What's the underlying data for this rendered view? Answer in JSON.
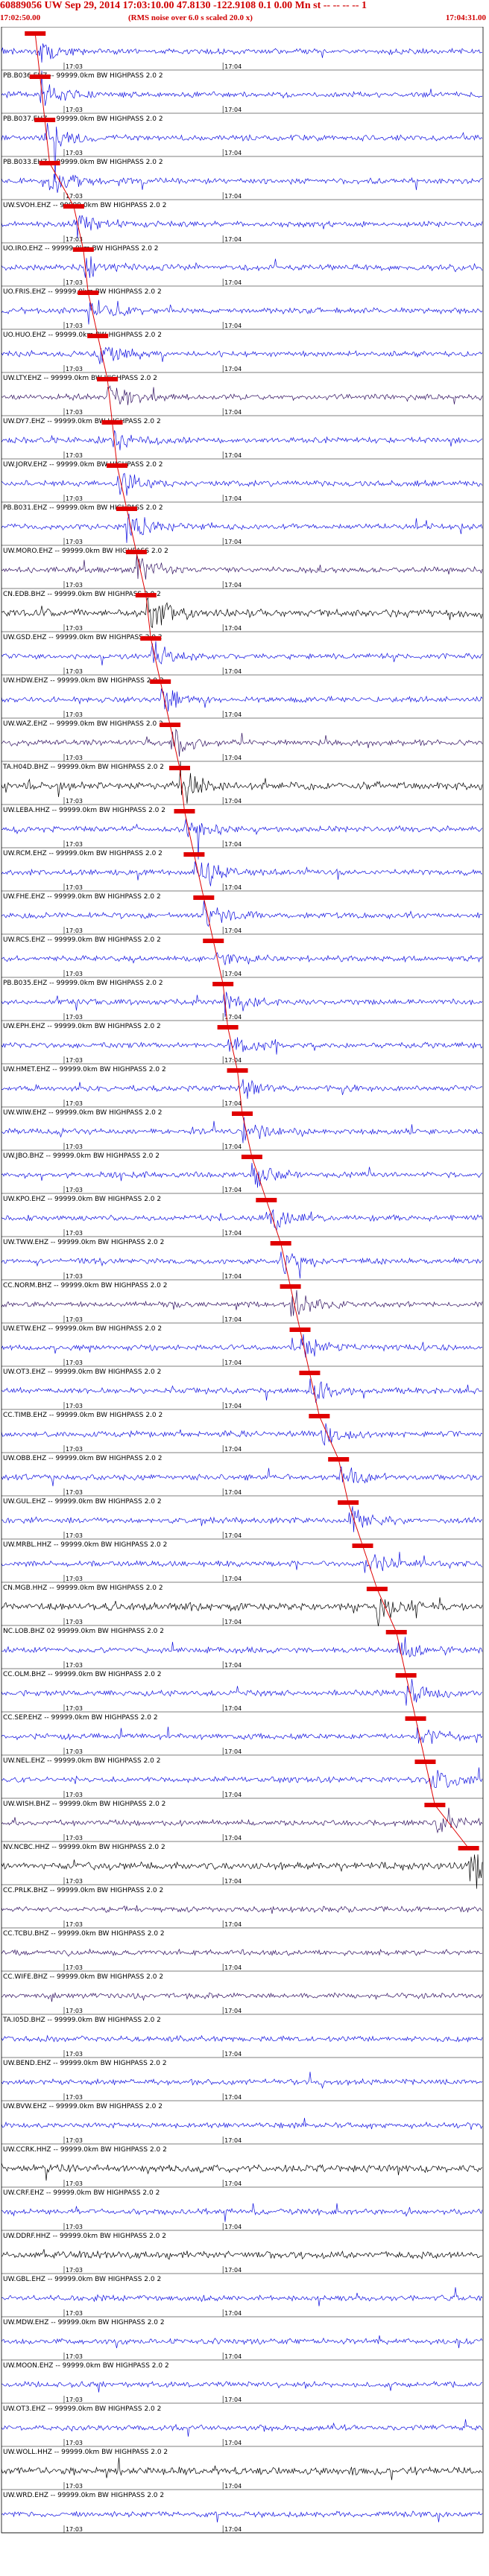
{
  "header": {
    "title": "60889056 UW Sep 29, 2014 17:03:10.00   47.8130 -122.9108  0.1 0.00 Mn st -- -- -- -- 1",
    "start_time": "17:02:50.00",
    "note": "(RMS noise over 6.0 s scaled 20.0 x)",
    "end_time": "17:04:31.00"
  },
  "time_labels": [
    "17:03",
    "17:04"
  ],
  "colors": {
    "trace_blue": "#1010e0",
    "trace_black": "#000000",
    "trace_purple": "#301060",
    "pick": "#e00000",
    "grid": "#000000"
  },
  "channels": [
    {
      "label": "",
      "color": "blue",
      "pick": 0.07
    },
    {
      "label": "PB.B036.EHZ -- 99999.0km BW HIGHPASS 2.0 2",
      "color": "blue",
      "pick": 0.08
    },
    {
      "label": "PB.B037.EHZ -- 99999.0km BW HIGHPASS 2.0 2",
      "color": "blue",
      "pick": 0.09
    },
    {
      "label": "PB.B033.EHZ -- 99999.0km BW HIGHPASS 2.0 2",
      "color": "blue",
      "pick": 0.1
    },
    {
      "label": "UW.SVOH.EHZ -- 99999.0km BW HIGHPASS 2.0 2",
      "color": "blue",
      "pick": 0.15
    },
    {
      "label": "UO.IRO.EHZ -- 99999.0km BW HIGHPASS 2.0 2",
      "color": "blue",
      "pick": 0.17
    },
    {
      "label": "UO.FRIS.EHZ -- 99999.0km BW HIGHPASS 2.0 2",
      "color": "blue",
      "pick": 0.18
    },
    {
      "label": "UO.HUO.EHZ -- 99999.0km BW HIGHPASS 2.0 2",
      "color": "blue",
      "pick": 0.2
    },
    {
      "label": "UW.LTY.EHZ -- 99999.0km BW HIGHPASS 2.0 2",
      "color": "purple",
      "pick": 0.22
    },
    {
      "label": "UW.DY7.EHZ -- 99999.0km BW HIGHPASS 2.0 2",
      "color": "blue",
      "pick": 0.23
    },
    {
      "label": "UW.JORV.EHZ -- 99999.0km BW HIGHPASS 2.0 2",
      "color": "blue",
      "pick": 0.24
    },
    {
      "label": "PB.B031.EHZ -- 99999.0km BW HIGHPASS 2.0 2",
      "color": "blue",
      "pick": 0.26
    },
    {
      "label": "UW.MORO.EHZ -- 99999.0km BW HIGHPASS 2.0 2",
      "color": "purple",
      "pick": 0.28
    },
    {
      "label": "CN.EDB.BHZ -- 99999.0km BW HIGHPASS 2.0 2",
      "color": "black",
      "pick": 0.3
    },
    {
      "label": "UW.GSD.EHZ -- 99999.0km BW HIGHPASS 2.0 2",
      "color": "blue",
      "pick": 0.31
    },
    {
      "label": "UW.HDW.EHZ -- 99999.0km BW HIGHPASS 2.0 2",
      "color": "blue",
      "pick": 0.33
    },
    {
      "label": "UW.WAZ.EHZ -- 99999.0km BW HIGHPASS 2.0 2",
      "color": "purple",
      "pick": 0.35
    },
    {
      "label": "TA.H04D.BHZ -- 99999.0km BW HIGHPASS 2.0 2",
      "color": "black",
      "pick": 0.37
    },
    {
      "label": "UW.LEBA.HHZ -- 99999.0km BW HIGHPASS 2.0 2",
      "color": "blue",
      "pick": 0.38
    },
    {
      "label": "UW.RCM.EHZ -- 99999.0km BW HIGHPASS 2.0 2",
      "color": "blue",
      "pick": 0.4
    },
    {
      "label": "UW.FHE.EHZ -- 99999.0km BW HIGHPASS 2.0 2",
      "color": "blue",
      "pick": 0.42
    },
    {
      "label": "UW.RCS.EHZ -- 99999.0km BW HIGHPASS 2.0 2",
      "color": "blue",
      "pick": 0.44
    },
    {
      "label": "PB.B035.EHZ -- 99999.0km BW HIGHPASS 2.0 2",
      "color": "blue",
      "pick": 0.46
    },
    {
      "label": "UW.EPH.EHZ -- 99999.0km BW HIGHPASS 2.0 2",
      "color": "blue",
      "pick": 0.47
    },
    {
      "label": "UW.HMET.EHZ -- 99999.0km BW HIGHPASS 2.0 2",
      "color": "blue",
      "pick": 0.49
    },
    {
      "label": "UW.WIW.EHZ -- 99999.0km BW HIGHPASS 2.0 2",
      "color": "blue",
      "pick": 0.5
    },
    {
      "label": "UW.JBO.BHZ -- 99999.0km BW HIGHPASS 2.0 2",
      "color": "blue",
      "pick": 0.52
    },
    {
      "label": "UW.KPO.EHZ -- 99999.0km BW HIGHPASS 2.0 2",
      "color": "blue",
      "pick": 0.55
    },
    {
      "label": "UW.TWW.EHZ -- 99999.0km BW HIGHPASS 2.0 2",
      "color": "blue",
      "pick": 0.58
    },
    {
      "label": "CC.NORM.BHZ -- 99999.0km BW HIGHPASS 2.0 2",
      "color": "purple",
      "pick": 0.6
    },
    {
      "label": "UW.ETW.EHZ -- 99999.0km BW HIGHPASS 2.0 2",
      "color": "blue",
      "pick": 0.62
    },
    {
      "label": "UW.OT3.EHZ -- 99999.0km BW HIGHPASS 2.0 2",
      "color": "blue",
      "pick": 0.64
    },
    {
      "label": "CC.TIMB.EHZ -- 99999.0km BW HIGHPASS 2.0 2",
      "color": "blue",
      "pick": 0.66
    },
    {
      "label": "UW.OBB.EHZ -- 99999.0km BW HIGHPASS 2.0 2",
      "color": "blue",
      "pick": 0.7
    },
    {
      "label": "UW.GUL.EHZ -- 99999.0km BW HIGHPASS 2.0 2",
      "color": "blue",
      "pick": 0.72
    },
    {
      "label": "UW.MRBL.HHZ -- 99999.0km BW HIGHPASS 2.0 2",
      "color": "blue",
      "pick": 0.75
    },
    {
      "label": "CN.MGB.HHZ -- 99999.0km BW HIGHPASS 2.0 2",
      "color": "black",
      "pick": 0.78
    },
    {
      "label": "NC.LOB.BHZ 02 99999.0km BW HIGHPASS 2.0 2",
      "color": "blue",
      "pick": 0.82
    },
    {
      "label": "CC.OLM.BHZ -- 99999.0km BW HIGHPASS 2.0 2",
      "color": "blue",
      "pick": 0.84
    },
    {
      "label": "CC.SEP.EHZ -- 99999.0km BW HIGHPASS 2.0 2",
      "color": "blue",
      "pick": 0.86
    },
    {
      "label": "UW.NEL.EHZ -- 99999.0km BW HIGHPASS 2.0 2",
      "color": "blue",
      "pick": 0.88
    },
    {
      "label": "UW.WISH.BHZ -- 99999.0km BW HIGHPASS 2.0 2",
      "color": "purple",
      "pick": 0.9
    },
    {
      "label": "NV.NCBC.HHZ -- 99999.0km BW HIGHPASS 2.0 2",
      "color": "black",
      "pick": 0.97
    },
    {
      "label": "CC.PRLK.BHZ -- 99999.0km BW HIGHPASS 2.0 2",
      "color": "purple",
      "pick": null
    },
    {
      "label": "CC.TCBU.BHZ -- 99999.0km BW HIGHPASS 2.0 2",
      "color": "purple",
      "pick": null
    },
    {
      "label": "CC.WIFE.BHZ -- 99999.0km BW HIGHPASS 2.0 2",
      "color": "purple",
      "pick": null
    },
    {
      "label": "TA.I05D.BHZ -- 99999.0km BW HIGHPASS 2.0 2",
      "color": "blue",
      "pick": null
    },
    {
      "label": "UW.BEND.EHZ -- 99999.0km BW HIGHPASS 2.0 2",
      "color": "blue",
      "pick": null
    },
    {
      "label": "UW.BVW.EHZ -- 99999.0km BW HIGHPASS 2.0 2",
      "color": "blue",
      "pick": null
    },
    {
      "label": "UW.CCRK.HHZ -- 99999.0km BW HIGHPASS 2.0 2",
      "color": "black",
      "pick": null
    },
    {
      "label": "UW.CRF.EHZ -- 99999.0km BW HIGHPASS 2.0 2",
      "color": "blue",
      "pick": null
    },
    {
      "label": "UW.DDRF.HHZ -- 99999.0km BW HIGHPASS 2.0 2",
      "color": "black",
      "pick": null
    },
    {
      "label": "UW.GBL.EHZ -- 99999.0km BW HIGHPASS 2.0 2",
      "color": "blue",
      "pick": null
    },
    {
      "label": "UW.MDW.EHZ -- 99999.0km BW HIGHPASS 2.0 2",
      "color": "blue",
      "pick": null
    },
    {
      "label": "UW.MOON.EHZ -- 99999.0km BW HIGHPASS 2.0 2",
      "color": "blue",
      "pick": null
    },
    {
      "label": "UW.OT3.EHZ -- 99999.0km BW HIGHPASS 2.0 2",
      "color": "blue",
      "pick": null
    },
    {
      "label": "UW.WOLL.HHZ -- 99999.0km BW HIGHPASS 2.0 2",
      "color": "black",
      "pick": null
    },
    {
      "label": "UW.WRD.EHZ -- 99999.0km BW HIGHPASS 2.0 2",
      "color": "blue",
      "pick": null
    }
  ]
}
